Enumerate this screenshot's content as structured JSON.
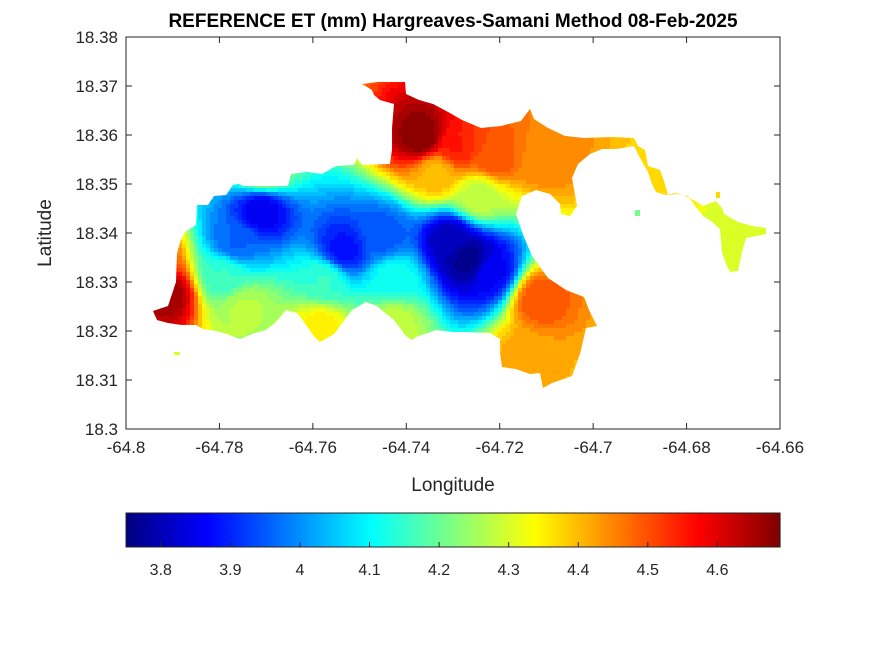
{
  "chart_data": {
    "type": "heatmap",
    "title": "REFERENCE ET (mm) Hargreaves-Samani Method  08-Feb-2025",
    "xlabel": "Longitude",
    "ylabel": "Latitude",
    "xlim": [
      -64.8,
      -64.66
    ],
    "ylim": [
      18.3,
      18.38
    ],
    "x_ticks": [
      -64.8,
      -64.78,
      -64.76,
      -64.74,
      -64.72,
      -64.7,
      -64.68,
      -64.66
    ],
    "x_tick_labels": [
      "-64.8",
      "-64.78",
      "-64.76",
      "-64.74",
      "-64.72",
      "-64.7",
      "-64.68",
      "-64.66"
    ],
    "y_ticks": [
      18.3,
      18.31,
      18.32,
      18.33,
      18.34,
      18.35,
      18.36,
      18.37,
      18.38
    ],
    "y_tick_labels": [
      "18.3",
      "18.31",
      "18.32",
      "18.33",
      "18.34",
      "18.35",
      "18.36",
      "18.37",
      "18.38"
    ],
    "grid": false,
    "colormap": "jet",
    "color_range": [
      3.75,
      4.69
    ],
    "colorbar": {
      "orientation": "horizontal",
      "placement": "below",
      "ticks": [
        3.8,
        3.9,
        4.0,
        4.1,
        4.2,
        4.3,
        4.4,
        4.5,
        4.6
      ],
      "tick_labels": [
        "3.8",
        "3.9",
        "4",
        "4.1",
        "4.2",
        "4.3",
        "4.4",
        "4.5",
        "4.6"
      ]
    },
    "field_features": [
      {
        "lon": -64.771,
        "lat": 18.3445,
        "value": 3.85
      },
      {
        "lon": -64.7535,
        "lat": 18.3365,
        "value": 3.88
      },
      {
        "lon": -64.745,
        "lat": 18.3395,
        "value": 3.95
      },
      {
        "lon": -64.7265,
        "lat": 18.3345,
        "value": 3.76
      },
      {
        "lon": -64.722,
        "lat": 18.332,
        "value": 3.86
      },
      {
        "lon": -64.7305,
        "lat": 18.3385,
        "value": 3.8
      },
      {
        "lon": -64.7765,
        "lat": 18.338,
        "value": 3.96
      },
      {
        "lon": -64.779,
        "lat": 18.3315,
        "value": 4.15
      },
      {
        "lon": -64.7745,
        "lat": 18.3245,
        "value": 4.27
      },
      {
        "lon": -64.7915,
        "lat": 18.3275,
        "value": 4.66
      },
      {
        "lon": -64.7945,
        "lat": 18.3345,
        "value": 4.48
      },
      {
        "lon": -64.7365,
        "lat": 18.3595,
        "value": 4.69
      },
      {
        "lon": -64.7295,
        "lat": 18.3575,
        "value": 4.55
      },
      {
        "lon": -64.7215,
        "lat": 18.3555,
        "value": 4.5
      },
      {
        "lon": -64.7335,
        "lat": 18.3525,
        "value": 4.4
      },
      {
        "lon": -64.7105,
        "lat": 18.3555,
        "value": 4.45
      },
      {
        "lon": -64.7115,
        "lat": 18.3265,
        "value": 4.5
      },
      {
        "lon": -64.7145,
        "lat": 18.3145,
        "value": 4.42
      },
      {
        "lon": -64.7585,
        "lat": 18.3205,
        "value": 4.35
      },
      {
        "lon": -64.7425,
        "lat": 18.3215,
        "value": 4.28
      },
      {
        "lon": -64.7705,
        "lat": 18.3525,
        "value": 4.25
      },
      {
        "lon": -64.6855,
        "lat": 18.3435,
        "value": 4.38
      },
      {
        "lon": -64.6715,
        "lat": 18.3405,
        "value": 4.3
      },
      {
        "lon": -64.7245,
        "lat": 18.3475,
        "value": 4.28
      },
      {
        "lon": -64.7575,
        "lat": 18.3305,
        "value": 4.15
      },
      {
        "lon": -64.7425,
        "lat": 18.3305,
        "value": 4.12
      }
    ],
    "masked_region_note": ""
  }
}
